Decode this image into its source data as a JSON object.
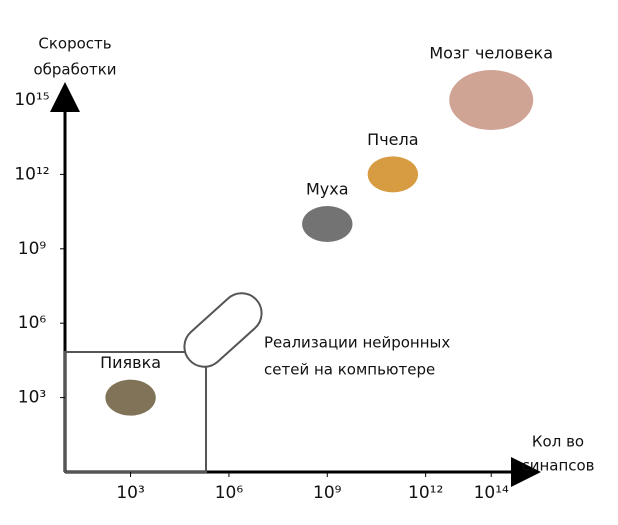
{
  "chart_data": {
    "type": "scatter",
    "y_label": [
      "Скорость",
      "обработки"
    ],
    "x_label": [
      "Кол во",
      "синапсов"
    ],
    "log_scale": true,
    "xlim": [
      10,
      1000000000000000.0
    ],
    "ylim": [
      1,
      1000000000000000.0
    ],
    "xticks": [
      {
        "value": 1000,
        "label": "10³"
      },
      {
        "value": 1000000,
        "label": "10⁶"
      },
      {
        "value": 1000000000,
        "label": "10⁹"
      },
      {
        "value": 1000000000000,
        "label": "10¹²"
      },
      {
        "value": 100000000000000,
        "label": "10¹⁴"
      }
    ],
    "yticks": [
      {
        "value": 1000,
        "label": "10³"
      },
      {
        "value": 1000000,
        "label": "10⁶"
      },
      {
        "value": 1000000000,
        "label": "10⁹"
      },
      {
        "value": 1000000000000,
        "label": "10¹²"
      },
      {
        "value": 1000000000000000,
        "label": "10¹⁵"
      }
    ],
    "points": [
      {
        "label": "Пиявка",
        "x": 1000,
        "y": 1000,
        "color": "#6b5a3a"
      },
      {
        "label": "Муха",
        "x": 1000000000,
        "y": 10000000000,
        "color": "#5a5a5a"
      },
      {
        "label": "Пчела",
        "x": 100000000000,
        "y": 1000000000000,
        "color": "#d08a20"
      },
      {
        "label": "Мозг человека",
        "x": 100000000000000,
        "y": 1000000000000000,
        "color": "#c89482"
      }
    ],
    "annotation": [
      "Реализации нейронных",
      "сетей на компьютере"
    ]
  }
}
